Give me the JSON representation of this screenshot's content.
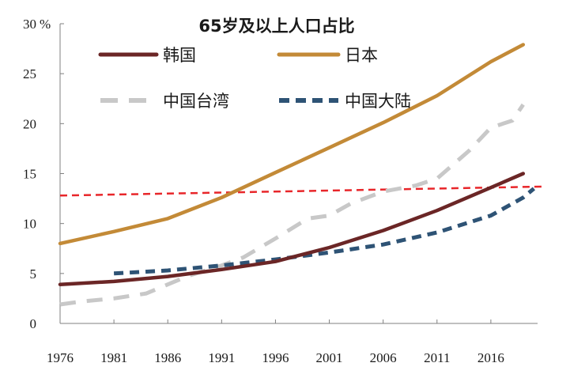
{
  "chart_data": {
    "type": "line",
    "title": "65岁及以上人口占比",
    "ylabel": "%",
    "xlabel": "",
    "xlim": [
      1976,
      2021
    ],
    "ylim": [
      0,
      30
    ],
    "x_ticks": [
      1976,
      1981,
      1986,
      1991,
      1996,
      2001,
      2006,
      2011,
      2016
    ],
    "y_ticks": [
      0,
      5,
      10,
      15,
      20,
      25,
      30
    ],
    "series": [
      {
        "name": "韩国",
        "color": "#6b2626",
        "style": "solid",
        "x": [
          1976,
          1981,
          1986,
          1991,
          1996,
          2001,
          2006,
          2011,
          2016,
          2019
        ],
        "values": [
          3.9,
          4.2,
          4.7,
          5.4,
          6.2,
          7.6,
          9.3,
          11.3,
          13.6,
          15.0
        ]
      },
      {
        "name": "日本",
        "color": "#c38a37",
        "style": "solid",
        "x": [
          1976,
          1981,
          1986,
          1991,
          1996,
          2001,
          2006,
          2011,
          2016,
          2019
        ],
        "values": [
          8.0,
          9.2,
          10.5,
          12.6,
          15.1,
          17.6,
          20.1,
          22.8,
          26.2,
          27.9
        ]
      },
      {
        "name": "中国台湾",
        "color": "#c8c8c8",
        "style": "dashed",
        "x": [
          1976,
          1978,
          1981,
          1984,
          1986,
          1988,
          1991,
          1993,
          1996,
          1999,
          2001,
          2003,
          2006,
          2009,
          2011,
          2014,
          2016,
          2018,
          2019
        ],
        "values": [
          1.9,
          2.2,
          2.5,
          3.0,
          3.9,
          4.8,
          5.8,
          6.6,
          8.5,
          10.5,
          10.8,
          12.0,
          13.2,
          13.8,
          14.5,
          17.3,
          19.6,
          20.3,
          21.9
        ]
      },
      {
        "name": "中国大陆",
        "color": "#2e5375",
        "style": "dashed",
        "x": [
          1981,
          1986,
          1991,
          1996,
          2001,
          2006,
          2011,
          2016,
          2019,
          2020
        ],
        "values": [
          5.0,
          5.3,
          5.8,
          6.4,
          7.1,
          7.9,
          9.1,
          10.8,
          12.6,
          13.5
        ]
      }
    ],
    "reference_line": {
      "color": "#e8262a",
      "style": "dashed",
      "x": [
        1976,
        2021
      ],
      "values": [
        12.8,
        13.7
      ]
    }
  }
}
